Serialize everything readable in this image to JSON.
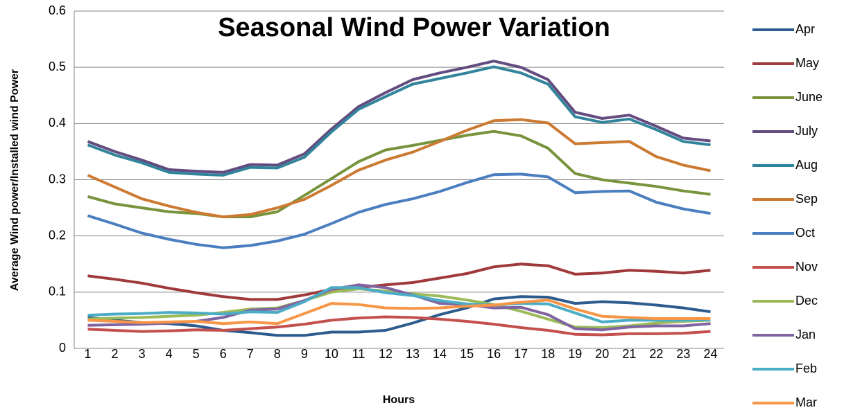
{
  "chart_data": {
    "type": "line",
    "title": "Seasonal Wind Power Variation",
    "x_label": "Hours",
    "y_label": "Average Wind power/Installed wind Power",
    "categories": [
      "1",
      "2",
      "3",
      "4",
      "5",
      "6",
      "7",
      "8",
      "9",
      "10",
      "11",
      "12",
      "13",
      "14",
      "15",
      "16",
      "17",
      "18",
      "19",
      "20",
      "21",
      "22",
      "23",
      "24"
    ],
    "ylim": [
      0,
      0.6
    ],
    "yticks": [
      0,
      0.1,
      0.2,
      0.3,
      0.4,
      0.5,
      0.6
    ],
    "grid": true,
    "legend": "right",
    "series": [
      {
        "name": "Apr",
        "color": "#2c5b8e",
        "values": [
          0.055,
          0.05,
          0.046,
          0.044,
          0.04,
          0.032,
          0.028,
          0.023,
          0.023,
          0.029,
          0.029,
          0.032,
          0.045,
          0.06,
          0.072,
          0.088,
          0.092,
          0.091,
          0.08,
          0.083,
          0.081,
          0.077,
          0.072,
          0.065
        ]
      },
      {
        "name": "May",
        "color": "#a0393a",
        "values": [
          0.129,
          0.123,
          0.116,
          0.107,
          0.099,
          0.092,
          0.087,
          0.087,
          0.095,
          0.105,
          0.108,
          0.113,
          0.117,
          0.125,
          0.133,
          0.145,
          0.15,
          0.147,
          0.132,
          0.134,
          0.139,
          0.137,
          0.134,
          0.139
        ]
      },
      {
        "name": "June",
        "color": "#77943c",
        "values": [
          0.27,
          0.257,
          0.25,
          0.243,
          0.24,
          0.234,
          0.234,
          0.243,
          0.272,
          0.302,
          0.332,
          0.353,
          0.361,
          0.37,
          0.379,
          0.386,
          0.378,
          0.356,
          0.311,
          0.3,
          0.294,
          0.288,
          0.28,
          0.274
        ]
      },
      {
        "name": "July",
        "color": "#634b80",
        "values": [
          0.368,
          0.35,
          0.335,
          0.318,
          0.315,
          0.313,
          0.327,
          0.326,
          0.346,
          0.39,
          0.43,
          0.455,
          0.478,
          0.49,
          0.5,
          0.511,
          0.5,
          0.478,
          0.42,
          0.409,
          0.415,
          0.395,
          0.374,
          0.369
        ]
      },
      {
        "name": "Aug",
        "color": "#31849b",
        "values": [
          0.362,
          0.344,
          0.33,
          0.313,
          0.31,
          0.308,
          0.322,
          0.321,
          0.34,
          0.385,
          0.425,
          0.448,
          0.47,
          0.48,
          0.49,
          0.501,
          0.49,
          0.47,
          0.412,
          0.402,
          0.408,
          0.389,
          0.368,
          0.362
        ]
      },
      {
        "name": "Sep",
        "color": "#cc7a32",
        "values": [
          0.308,
          0.287,
          0.266,
          0.253,
          0.242,
          0.234,
          0.238,
          0.25,
          0.265,
          0.29,
          0.317,
          0.335,
          0.349,
          0.368,
          0.388,
          0.405,
          0.407,
          0.401,
          0.364,
          0.366,
          0.368,
          0.341,
          0.326,
          0.316
        ]
      },
      {
        "name": "Oct",
        "color": "#4a7ebf",
        "values": [
          0.236,
          0.221,
          0.205,
          0.194,
          0.185,
          0.179,
          0.183,
          0.191,
          0.203,
          0.222,
          0.242,
          0.256,
          0.266,
          0.279,
          0.295,
          0.309,
          0.31,
          0.305,
          0.277,
          0.279,
          0.28,
          0.26,
          0.248,
          0.24
        ]
      },
      {
        "name": "Nov",
        "color": "#c4504d",
        "values": [
          0.034,
          0.032,
          0.03,
          0.031,
          0.033,
          0.032,
          0.035,
          0.038,
          0.043,
          0.05,
          0.054,
          0.056,
          0.055,
          0.052,
          0.048,
          0.043,
          0.037,
          0.032,
          0.025,
          0.024,
          0.026,
          0.026,
          0.027,
          0.03
        ]
      },
      {
        "name": "Dec",
        "color": "#9bbb59",
        "values": [
          0.052,
          0.054,
          0.055,
          0.057,
          0.059,
          0.064,
          0.07,
          0.072,
          0.085,
          0.1,
          0.106,
          0.102,
          0.097,
          0.093,
          0.086,
          0.078,
          0.066,
          0.052,
          0.038,
          0.037,
          0.04,
          0.045,
          0.048,
          0.05
        ]
      },
      {
        "name": "Jan",
        "color": "#8064a2",
        "values": [
          0.041,
          0.042,
          0.043,
          0.045,
          0.048,
          0.055,
          0.068,
          0.07,
          0.085,
          0.105,
          0.113,
          0.108,
          0.095,
          0.08,
          0.078,
          0.072,
          0.073,
          0.06,
          0.035,
          0.033,
          0.038,
          0.04,
          0.04,
          0.044
        ]
      },
      {
        "name": "Feb",
        "color": "#4bacc6",
        "values": [
          0.059,
          0.061,
          0.062,
          0.064,
          0.063,
          0.061,
          0.065,
          0.064,
          0.083,
          0.108,
          0.108,
          0.099,
          0.094,
          0.085,
          0.079,
          0.077,
          0.08,
          0.079,
          0.063,
          0.047,
          0.05,
          0.05,
          0.05,
          0.051
        ]
      },
      {
        "name": "Mar",
        "color": "#f79646",
        "values": [
          0.05,
          0.048,
          0.046,
          0.047,
          0.048,
          0.044,
          0.047,
          0.044,
          0.062,
          0.08,
          0.078,
          0.072,
          0.071,
          0.072,
          0.075,
          0.077,
          0.082,
          0.086,
          0.07,
          0.057,
          0.055,
          0.053,
          0.053,
          0.053
        ]
      }
    ]
  }
}
